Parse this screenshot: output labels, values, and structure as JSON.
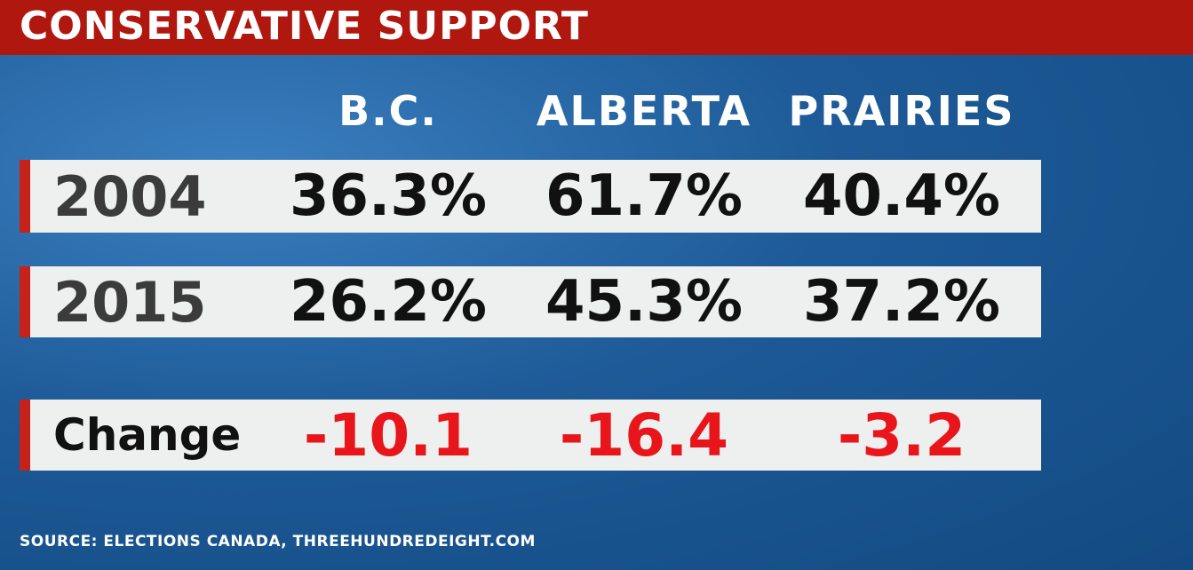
{
  "header": {
    "title": "CONSERVATIVE SUPPORT"
  },
  "table": {
    "columns": [
      "B.C.",
      "ALBERTA",
      "PRAIRIES"
    ],
    "rows": [
      [
        "2004",
        "36.3%",
        "61.7%",
        "40.4%"
      ],
      [
        "2015",
        "26.2%",
        "45.3%",
        "37.2%"
      ],
      [
        "Change",
        "-10.1",
        "-16.4",
        "-3.2"
      ]
    ]
  },
  "footer": {
    "source": "SOURCE: ELECTIONS CANADA, THREEHUNDREDEIGHT.COM"
  }
}
